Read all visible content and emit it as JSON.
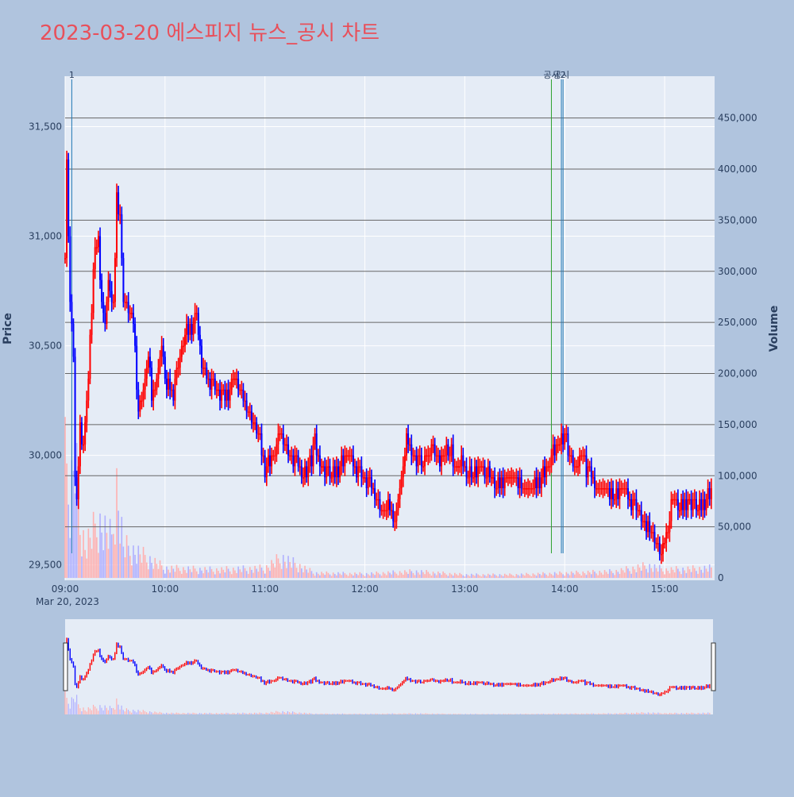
{
  "title": "2023-03-20 에스피지 뉴스_공시 차트",
  "colors": {
    "page_bg": "#b0c4de",
    "plot_bg": "#e5ecf6",
    "title": "#e8505b",
    "up": "#ff0000",
    "down": "#0000ff",
    "up_volume": "#ffb0b0",
    "down_volume": "#b0b0ff",
    "vline_green": "#2ca02c",
    "vline_blue": "#1f77b4",
    "hline": "#666666"
  },
  "chart_data": {
    "type": "candlestick",
    "date_label": "Mar 20, 2023",
    "y_axis_title": "Price",
    "y2_axis_title": "Volume",
    "price_range": [
      29430,
      31730
    ],
    "price_ticks": [
      29500,
      30000,
      30500,
      31000,
      31500
    ],
    "price_tick_labels": [
      "29,500",
      "30,000",
      "30,500",
      "31,000",
      "31,500"
    ],
    "volume_range": [
      0,
      480000
    ],
    "volume_ticks": [
      0,
      50000,
      100000,
      150000,
      200000,
      250000,
      300000,
      350000,
      400000,
      450000
    ],
    "volume_tick_labels": [
      "0",
      "50,000",
      "100,000",
      "150,000",
      "200,000",
      "250,000",
      "300,000",
      "350,000",
      "400,000",
      "450,000"
    ],
    "x_range": [
      "09:00",
      "15:30"
    ],
    "x_ticks": [
      "09:00",
      "10:00",
      "11:00",
      "12:00",
      "13:00",
      "14:00",
      "15:00"
    ],
    "reference_lines": [
      {
        "type": "volume",
        "value": 450000
      },
      {
        "type": "volume",
        "value": 400000
      },
      {
        "type": "volume",
        "value": 350000
      },
      {
        "type": "volume",
        "value": 300000
      },
      {
        "type": "volume",
        "value": 250000
      },
      {
        "type": "volume",
        "value": 200000
      },
      {
        "type": "volume",
        "value": 150000
      },
      {
        "type": "volume",
        "value": 100000
      },
      {
        "type": "volume",
        "value": 50000
      }
    ],
    "annotations": [
      {
        "time": "09:04",
        "label": "1",
        "color": "blue"
      },
      {
        "time": "13:52",
        "label": "공시",
        "color": "green"
      },
      {
        "time": "13:58",
        "label": "공시",
        "color": "blue"
      },
      {
        "time": "13:59",
        "label": "2",
        "color": "blue"
      }
    ],
    "price_keypoints": [
      [
        "09:00",
        30900
      ],
      [
        "09:01",
        31350
      ],
      [
        "09:03",
        30700
      ],
      [
        "09:05",
        30450
      ],
      [
        "09:06",
        29900
      ],
      [
        "09:07",
        29750
      ],
      [
        "09:09",
        30150
      ],
      [
        "09:11",
        30050
      ],
      [
        "09:14",
        30350
      ],
      [
        "09:17",
        30850
      ],
      [
        "09:20",
        31000
      ],
      [
        "09:22",
        30700
      ],
      [
        "09:24",
        30600
      ],
      [
        "09:26",
        30800
      ],
      [
        "09:29",
        30650
      ],
      [
        "09:31",
        31200
      ],
      [
        "09:33",
        31100
      ],
      [
        "09:35",
        30700
      ],
      [
        "09:38",
        30650
      ],
      [
        "09:41",
        30600
      ],
      [
        "09:44",
        30200
      ],
      [
        "09:47",
        30300
      ],
      [
        "09:50",
        30450
      ],
      [
        "09:52",
        30250
      ],
      [
        "09:55",
        30350
      ],
      [
        "09:58",
        30500
      ],
      [
        "10:01",
        30300
      ],
      [
        "10:05",
        30300
      ],
      [
        "10:08",
        30400
      ],
      [
        "10:12",
        30550
      ],
      [
        "10:16",
        30600
      ],
      [
        "10:19",
        30650
      ],
      [
        "10:22",
        30400
      ],
      [
        "10:27",
        30350
      ],
      [
        "10:32",
        30300
      ],
      [
        "10:36",
        30250
      ],
      [
        "10:41",
        30350
      ],
      [
        "10:45",
        30300
      ],
      [
        "10:50",
        30200
      ],
      [
        "10:54",
        30150
      ],
      [
        "10:57",
        30050
      ],
      [
        "11:00",
        29950
      ],
      [
        "11:05",
        30000
      ],
      [
        "11:09",
        30100
      ],
      [
        "11:15",
        30000
      ],
      [
        "11:20",
        29950
      ],
      [
        "11:25",
        29900
      ],
      [
        "11:30",
        30050
      ],
      [
        "11:35",
        29950
      ],
      [
        "11:40",
        29900
      ],
      [
        "11:45",
        29950
      ],
      [
        "11:50",
        30000
      ],
      [
        "11:55",
        29950
      ],
      [
        "12:00",
        29900
      ],
      [
        "12:05",
        29850
      ],
      [
        "12:10",
        29750
      ],
      [
        "12:15",
        29750
      ],
      [
        "12:18",
        29700
      ],
      [
        "12:20",
        29800
      ],
      [
        "12:25",
        30050
      ],
      [
        "12:30",
        30000
      ],
      [
        "12:35",
        29950
      ],
      [
        "12:40",
        30050
      ],
      [
        "12:45",
        29950
      ],
      [
        "12:50",
        30050
      ],
      [
        "12:55",
        29950
      ],
      [
        "13:00",
        29950
      ],
      [
        "13:05",
        29900
      ],
      [
        "13:10",
        29950
      ],
      [
        "13:15",
        29900
      ],
      [
        "13:20",
        29850
      ],
      [
        "13:25",
        29900
      ],
      [
        "13:30",
        29900
      ],
      [
        "13:35",
        29850
      ],
      [
        "13:40",
        29850
      ],
      [
        "13:45",
        29900
      ],
      [
        "13:50",
        29950
      ],
      [
        "13:55",
        30050
      ],
      [
        "14:00",
        30100
      ],
      [
        "14:05",
        29950
      ],
      [
        "14:10",
        30000
      ],
      [
        "14:15",
        29900
      ],
      [
        "14:20",
        29850
      ],
      [
        "14:25",
        29850
      ],
      [
        "14:30",
        29800
      ],
      [
        "14:35",
        29850
      ],
      [
        "14:40",
        29800
      ],
      [
        "14:45",
        29750
      ],
      [
        "14:48",
        29650
      ],
      [
        "14:50",
        29700
      ],
      [
        "14:55",
        29600
      ],
      [
        "14:58",
        29550
      ],
      [
        "15:00",
        29600
      ],
      [
        "15:05",
        29800
      ],
      [
        "15:10",
        29750
      ],
      [
        "15:15",
        29800
      ],
      [
        "15:20",
        29750
      ],
      [
        "15:25",
        29800
      ],
      [
        "15:28",
        29850
      ]
    ],
    "volume_keypoints": [
      [
        "09:00",
        450000
      ],
      [
        "09:01",
        120000
      ],
      [
        "09:03",
        90000
      ],
      [
        "09:06",
        160000
      ],
      [
        "09:08",
        80000
      ],
      [
        "09:12",
        40000
      ],
      [
        "09:20",
        70000
      ],
      [
        "09:28",
        50000
      ],
      [
        "09:31",
        115000
      ],
      [
        "09:35",
        40000
      ],
      [
        "09:45",
        30000
      ],
      [
        "10:00",
        12000
      ],
      [
        "10:30",
        10000
      ],
      [
        "11:00",
        12000
      ],
      [
        "11:10",
        25000
      ],
      [
        "11:30",
        6000
      ],
      [
        "12:00",
        5000
      ],
      [
        "12:30",
        8000
      ],
      [
        "13:00",
        4000
      ],
      [
        "13:30",
        4000
      ],
      [
        "14:00",
        6000
      ],
      [
        "14:30",
        8000
      ],
      [
        "14:50",
        15000
      ],
      [
        "15:00",
        10000
      ],
      [
        "15:28",
        12000
      ]
    ]
  }
}
